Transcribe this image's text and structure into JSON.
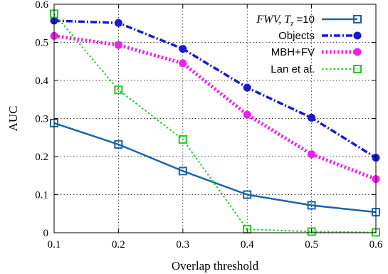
{
  "chart_data": {
    "type": "line",
    "x": [
      0.1,
      0.2,
      0.3,
      0.4,
      0.5,
      0.6
    ],
    "xlabel": "Overlap threshold",
    "ylabel": "AUC",
    "xlim": [
      0.1,
      0.6
    ],
    "ylim": [
      0,
      0.6
    ],
    "xticks": [
      "0.1",
      "0.2",
      "0.3",
      "0.4",
      "0.5",
      "0.6"
    ],
    "yticks": [
      "0",
      "0.1",
      "0.2",
      "0.3",
      "0.4",
      "0.5",
      "0.6"
    ],
    "grid": true,
    "legend_position": "top-right",
    "series": [
      {
        "name": "FWV, T_z =10",
        "legend_main": "FWV, T",
        "legend_sub": "z",
        "legend_rest": " =10",
        "values": [
          0.288,
          0.232,
          0.162,
          0.1,
          0.072,
          0.054
        ],
        "color": "#1a63a8",
        "marker": "square-open",
        "line": "solid"
      },
      {
        "name": "Objects",
        "values": [
          0.557,
          0.551,
          0.483,
          0.381,
          0.302,
          0.197
        ],
        "color": "#1a1ad6",
        "marker": "circle-filled",
        "line": "dashdot"
      },
      {
        "name": "MBH+FV",
        "values": [
          0.517,
          0.493,
          0.445,
          0.31,
          0.206,
          0.141
        ],
        "color": "#ee1fee",
        "marker": "circle-filled",
        "line": "dotted"
      },
      {
        "name": "Lan et al.",
        "values": [
          0.575,
          0.375,
          0.245,
          0.009,
          0.003,
          0.001
        ],
        "color": "#22cc22",
        "marker": "square-open",
        "line": "dotted"
      }
    ]
  }
}
